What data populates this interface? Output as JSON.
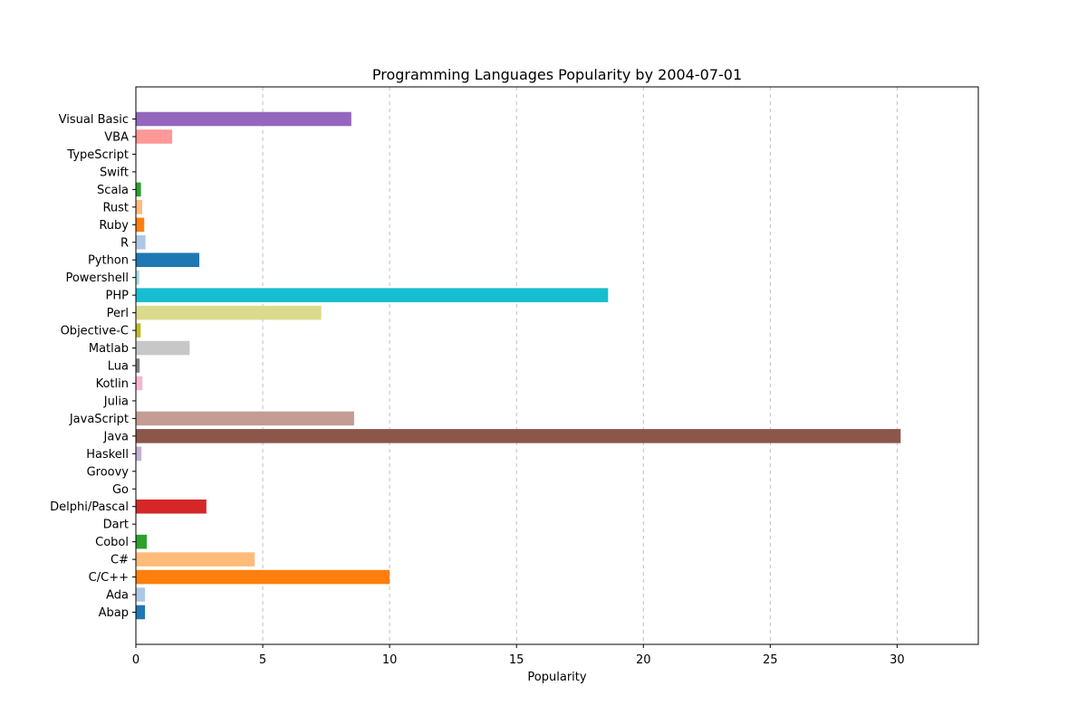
{
  "chart_data": {
    "type": "bar",
    "orientation": "horizontal",
    "title": "Programming Languages Popularity by 2004-07-01",
    "xlabel": "Popularity",
    "ylabel": "",
    "xlim": [
      0,
      33.2
    ],
    "xticks": [
      0,
      5,
      10,
      15,
      20,
      25,
      30
    ],
    "grid": "x-dashed",
    "categories": [
      "Abap",
      "Ada",
      "C/C++",
      "C#",
      "Cobol",
      "Dart",
      "Delphi/Pascal",
      "Go",
      "Groovy",
      "Haskell",
      "Java",
      "JavaScript",
      "Julia",
      "Kotlin",
      "Lua",
      "Matlab",
      "Objective-C",
      "Perl",
      "PHP",
      "Powershell",
      "Python",
      "R",
      "Ruby",
      "Rust",
      "Scala",
      "Swift",
      "TypeScript",
      "VBA",
      "Visual Basic"
    ],
    "values": [
      0.36,
      0.36,
      10.0,
      4.68,
      0.43,
      0.0,
      2.78,
      0.0,
      0.0,
      0.22,
      30.14,
      8.6,
      0.0,
      0.26,
      0.15,
      2.12,
      0.19,
      7.31,
      18.61,
      0.13,
      2.5,
      0.38,
      0.33,
      0.25,
      0.2,
      0.0,
      0.0,
      1.43,
      8.49
    ],
    "colors": [
      "#1f77b4",
      "#aec7e8",
      "#ff7f0e",
      "#ffbb78",
      "#2ca02c",
      "#98df8a",
      "#d62728",
      "#ff9896",
      "#9467bd",
      "#c5b0d5",
      "#8c564b",
      "#c49c94",
      "#e377c2",
      "#f7b6d2",
      "#7f7f7f",
      "#c7c7c7",
      "#bcbd22",
      "#dbdb8d",
      "#17becf",
      "#9edae5",
      "#1f77b4",
      "#aec7e8",
      "#ff7f0e",
      "#ffbb78",
      "#2ca02c",
      "#98df8a",
      "#d62728",
      "#ff9896",
      "#9467bd"
    ]
  }
}
